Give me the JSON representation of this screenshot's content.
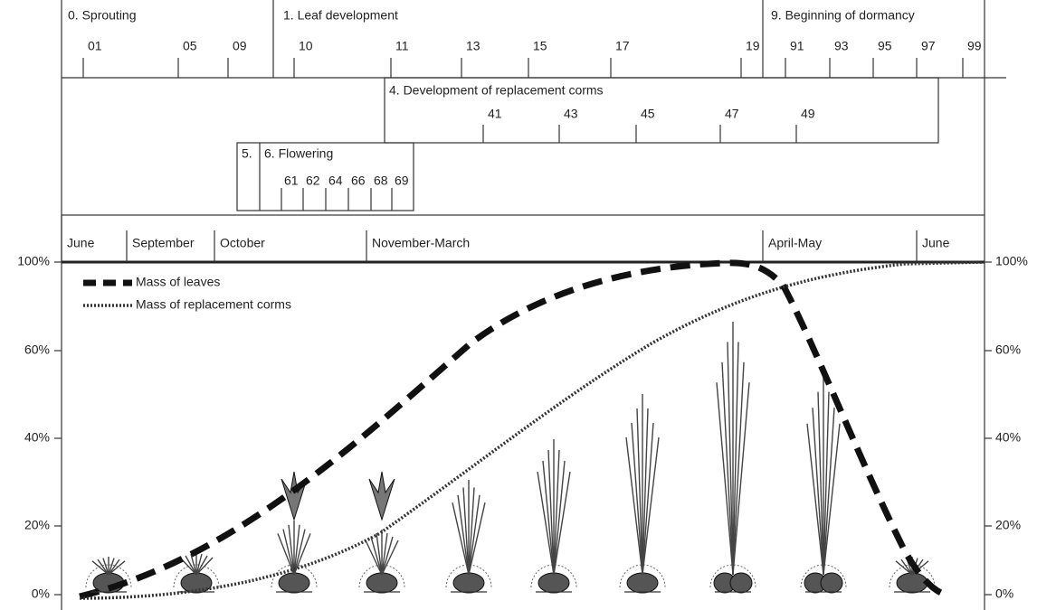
{
  "principal_stages": [
    {
      "label": "0. Sprouting",
      "codes": [
        "01",
        "05",
        "09"
      ]
    },
    {
      "label": "1. Leaf development",
      "codes": [
        "10",
        "11",
        "13",
        "15",
        "17",
        "19"
      ]
    },
    {
      "label": "9. Beginning of dormancy",
      "codes": [
        "91",
        "93",
        "95",
        "97",
        "99"
      ]
    }
  ],
  "replacement_corms": {
    "label": "4. Development of replacement corms",
    "codes": [
      "41",
      "43",
      "45",
      "47",
      "49"
    ]
  },
  "flowering": {
    "labels": [
      "5.",
      "6. Flowering"
    ],
    "codes": [
      "61",
      "62",
      "64",
      "66",
      "68",
      "69"
    ]
  },
  "months": [
    "June",
    "September",
    "October",
    "November-March",
    "April-May",
    "June"
  ],
  "axis": {
    "ticks": [
      "0%",
      "20%",
      "40%",
      "60%",
      "100%"
    ]
  },
  "legend": [
    "Mass of leaves",
    "Mass of replacement corms"
  ]
}
